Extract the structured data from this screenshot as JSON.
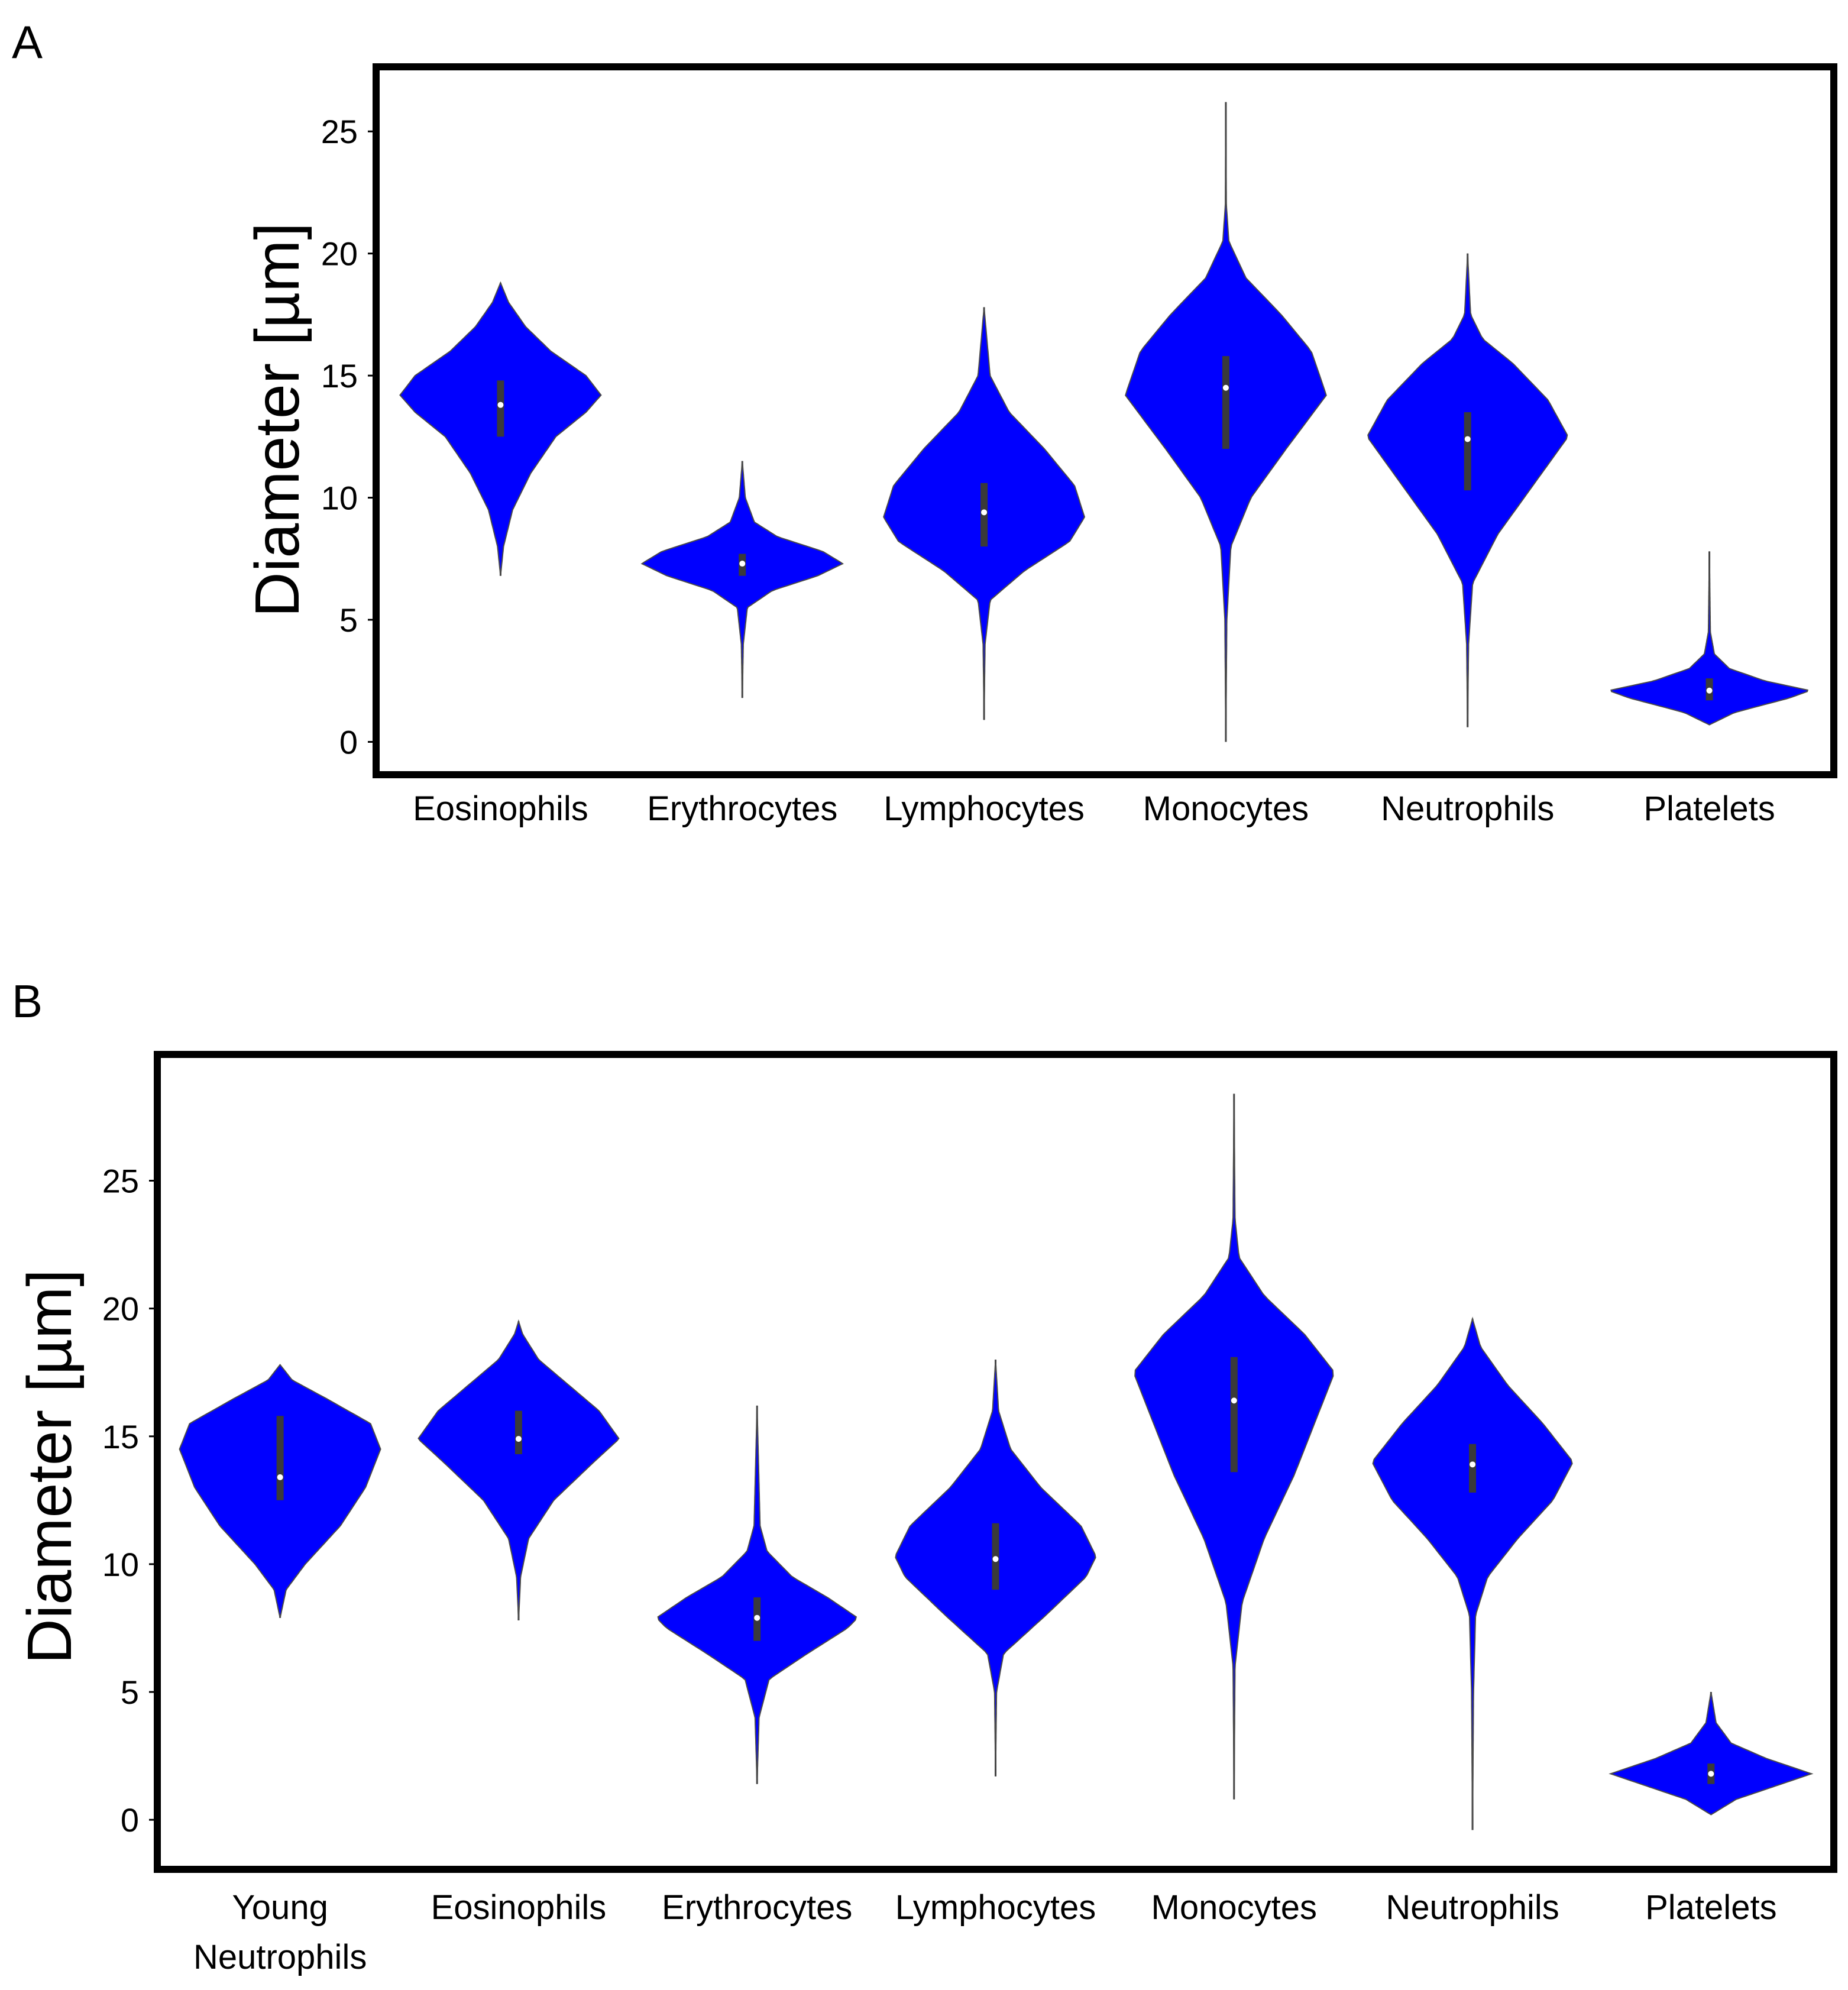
{
  "chart_data": [
    {
      "panel": "A",
      "type": "violin",
      "ylabel": "Diameter [µm]",
      "xlabel": "",
      "ylim": [
        -1.2,
        27.5
      ],
      "yticks": [
        0,
        5,
        10,
        15,
        20,
        25
      ],
      "color": "#0000ff",
      "categories": [
        {
          "name": "Eosinophils",
          "lines": [
            "Eosinophils"
          ],
          "min": 6.8,
          "max": 18.8,
          "q1": 12.5,
          "median": 13.8,
          "q3": 14.8,
          "profile": [
            [
              6.8,
              0.0
            ],
            [
              8,
              0.03
            ],
            [
              9.5,
              0.12
            ],
            [
              11,
              0.3
            ],
            [
              12.5,
              0.55
            ],
            [
              13.5,
              0.85
            ],
            [
              14.2,
              1.0
            ],
            [
              15,
              0.85
            ],
            [
              16,
              0.5
            ],
            [
              17,
              0.25
            ],
            [
              18,
              0.08
            ],
            [
              18.8,
              0.0
            ]
          ]
        },
        {
          "name": "Erythrocytes",
          "lines": [
            "Erythrocytes"
          ],
          "min": 1.8,
          "max": 11.5,
          "q1": 6.8,
          "median": 7.3,
          "q3": 7.7,
          "profile": [
            [
              1.8,
              0.0
            ],
            [
              4,
              0.01
            ],
            [
              5.5,
              0.05
            ],
            [
              6.2,
              0.3
            ],
            [
              6.8,
              0.75
            ],
            [
              7.3,
              1.0
            ],
            [
              7.8,
              0.8
            ],
            [
              8.4,
              0.35
            ],
            [
              9,
              0.12
            ],
            [
              10,
              0.03
            ],
            [
              11.5,
              0.0
            ]
          ]
        },
        {
          "name": "Lymphocytes",
          "lines": [
            "Lymphocytes"
          ],
          "min": 0.9,
          "max": 17.8,
          "q1": 8.0,
          "median": 9.4,
          "q3": 10.6,
          "profile": [
            [
              0.9,
              0.0
            ],
            [
              4,
              0.01
            ],
            [
              5.8,
              0.06
            ],
            [
              7,
              0.4
            ],
            [
              8.2,
              0.85
            ],
            [
              9.2,
              1.0
            ],
            [
              10.5,
              0.9
            ],
            [
              12,
              0.6
            ],
            [
              13.5,
              0.25
            ],
            [
              15,
              0.06
            ],
            [
              17.8,
              0.0
            ]
          ]
        },
        {
          "name": "Monocytes",
          "lines": [
            "Monocytes"
          ],
          "min": 0.0,
          "max": 26.2,
          "q1": 12.0,
          "median": 14.5,
          "q3": 15.8,
          "profile": [
            [
              0.0,
              0.0
            ],
            [
              5,
              0.01
            ],
            [
              8,
              0.05
            ],
            [
              10,
              0.25
            ],
            [
              12,
              0.6
            ],
            [
              14.2,
              1.0
            ],
            [
              16,
              0.85
            ],
            [
              17.5,
              0.55
            ],
            [
              19,
              0.2
            ],
            [
              20.5,
              0.03
            ],
            [
              22,
              0.005
            ],
            [
              26.2,
              0.0
            ]
          ]
        },
        {
          "name": "Neutrophils",
          "lines": [
            "Neutrophils"
          ],
          "min": 0.6,
          "max": 20.0,
          "q1": 10.3,
          "median": 12.4,
          "q3": 13.5,
          "profile": [
            [
              0.6,
              0.0
            ],
            [
              4,
              0.01
            ],
            [
              6.5,
              0.05
            ],
            [
              8.5,
              0.3
            ],
            [
              10.5,
              0.65
            ],
            [
              12.5,
              1.0
            ],
            [
              14,
              0.8
            ],
            [
              15.5,
              0.45
            ],
            [
              16.5,
              0.15
            ],
            [
              17.5,
              0.03
            ],
            [
              20,
              0.0
            ]
          ]
        },
        {
          "name": "Platelets",
          "lines": [
            "Platelets"
          ],
          "min": 0.7,
          "max": 7.8,
          "q1": 1.7,
          "median": 2.1,
          "q3": 2.6,
          "profile": [
            [
              0.7,
              0.0
            ],
            [
              1.2,
              0.25
            ],
            [
              1.8,
              0.8
            ],
            [
              2.1,
              1.0
            ],
            [
              2.5,
              0.55
            ],
            [
              3,
              0.2
            ],
            [
              3.6,
              0.05
            ],
            [
              4.5,
              0.01
            ],
            [
              7.8,
              0.0
            ]
          ]
        }
      ]
    },
    {
      "panel": "B",
      "type": "violin",
      "ylabel": "Diameter [µm]",
      "xlabel": "",
      "ylim": [
        -1.8,
        29.8
      ],
      "yticks": [
        0,
        5,
        10,
        15,
        20,
        25
      ],
      "color": "#0000ff",
      "categories": [
        {
          "name": "Young Neutrophils",
          "lines": [
            "Young",
            "Neutrophils"
          ],
          "min": 7.9,
          "max": 17.8,
          "q1": 12.5,
          "median": 13.4,
          "q3": 15.8,
          "profile": [
            [
              7.9,
              0.0
            ],
            [
              9,
              0.06
            ],
            [
              10,
              0.25
            ],
            [
              11.5,
              0.6
            ],
            [
              13,
              0.85
            ],
            [
              14.5,
              1.0
            ],
            [
              15.5,
              0.9
            ],
            [
              16.5,
              0.45
            ],
            [
              17.2,
              0.12
            ],
            [
              17.8,
              0.0
            ]
          ]
        },
        {
          "name": "Eosinophils",
          "lines": [
            "Eosinophils"
          ],
          "min": 7.8,
          "max": 19.5,
          "q1": 14.3,
          "median": 14.9,
          "q3": 16.0,
          "profile": [
            [
              7.8,
              0.0
            ],
            [
              9.5,
              0.02
            ],
            [
              11,
              0.1
            ],
            [
              12.5,
              0.35
            ],
            [
              14,
              0.75
            ],
            [
              14.9,
              1.0
            ],
            [
              16,
              0.8
            ],
            [
              17,
              0.5
            ],
            [
              18,
              0.2
            ],
            [
              19,
              0.04
            ],
            [
              19.5,
              0.0
            ]
          ]
        },
        {
          "name": "Erythrocytes",
          "lines": [
            "Erythrocytes"
          ],
          "min": 1.4,
          "max": 16.2,
          "q1": 7.0,
          "median": 7.9,
          "q3": 8.7,
          "profile": [
            [
              1.4,
              0.0
            ],
            [
              4,
              0.02
            ],
            [
              5.5,
              0.12
            ],
            [
              6.5,
              0.5
            ],
            [
              7.5,
              0.9
            ],
            [
              7.9,
              1.0
            ],
            [
              8.7,
              0.7
            ],
            [
              9.5,
              0.35
            ],
            [
              10.5,
              0.1
            ],
            [
              11.5,
              0.03
            ],
            [
              16.2,
              0.0
            ]
          ]
        },
        {
          "name": "Lymphocytes",
          "lines": [
            "Lymphocytes"
          ],
          "min": 1.7,
          "max": 18.0,
          "q1": 9.0,
          "median": 10.2,
          "q3": 11.6,
          "profile": [
            [
              1.7,
              0.0
            ],
            [
              5,
              0.01
            ],
            [
              6.5,
              0.08
            ],
            [
              8,
              0.5
            ],
            [
              9.5,
              0.9
            ],
            [
              10.3,
              1.0
            ],
            [
              11.5,
              0.85
            ],
            [
              13,
              0.45
            ],
            [
              14.5,
              0.15
            ],
            [
              16,
              0.03
            ],
            [
              18,
              0.0
            ]
          ]
        },
        {
          "name": "Monocytes",
          "lines": [
            "Monocytes"
          ],
          "min": 0.8,
          "max": 28.4,
          "q1": 13.6,
          "median": 16.4,
          "q3": 18.1,
          "profile": [
            [
              0.8,
              0.0
            ],
            [
              6,
              0.01
            ],
            [
              8.5,
              0.08
            ],
            [
              11,
              0.3
            ],
            [
              13.5,
              0.6
            ],
            [
              16,
              0.85
            ],
            [
              17.5,
              1.0
            ],
            [
              19,
              0.7
            ],
            [
              20.5,
              0.3
            ],
            [
              22,
              0.05
            ],
            [
              23.5,
              0.01
            ],
            [
              28.4,
              0.0
            ]
          ]
        },
        {
          "name": "Neutrophils",
          "lines": [
            "Neutrophils"
          ],
          "min": -0.4,
          "max": 19.6,
          "q1": 12.8,
          "median": 13.9,
          "q3": 14.7,
          "profile": [
            [
              -0.4,
              0.0
            ],
            [
              5,
              0.01
            ],
            [
              8,
              0.03
            ],
            [
              9.5,
              0.15
            ],
            [
              11,
              0.45
            ],
            [
              12.5,
              0.8
            ],
            [
              14,
              1.0
            ],
            [
              15.5,
              0.7
            ],
            [
              17,
              0.35
            ],
            [
              18.5,
              0.08
            ],
            [
              19.6,
              0.0
            ]
          ]
        },
        {
          "name": "Platelets",
          "lines": [
            "Platelets"
          ],
          "min": 0.2,
          "max": 5.0,
          "q1": 1.4,
          "median": 1.8,
          "q3": 2.2,
          "profile": [
            [
              0.2,
              0.0
            ],
            [
              0.8,
              0.25
            ],
            [
              1.4,
              0.7
            ],
            [
              1.8,
              1.0
            ],
            [
              2.4,
              0.55
            ],
            [
              3,
              0.2
            ],
            [
              3.8,
              0.05
            ],
            [
              5,
              0.0
            ]
          ]
        }
      ]
    }
  ]
}
